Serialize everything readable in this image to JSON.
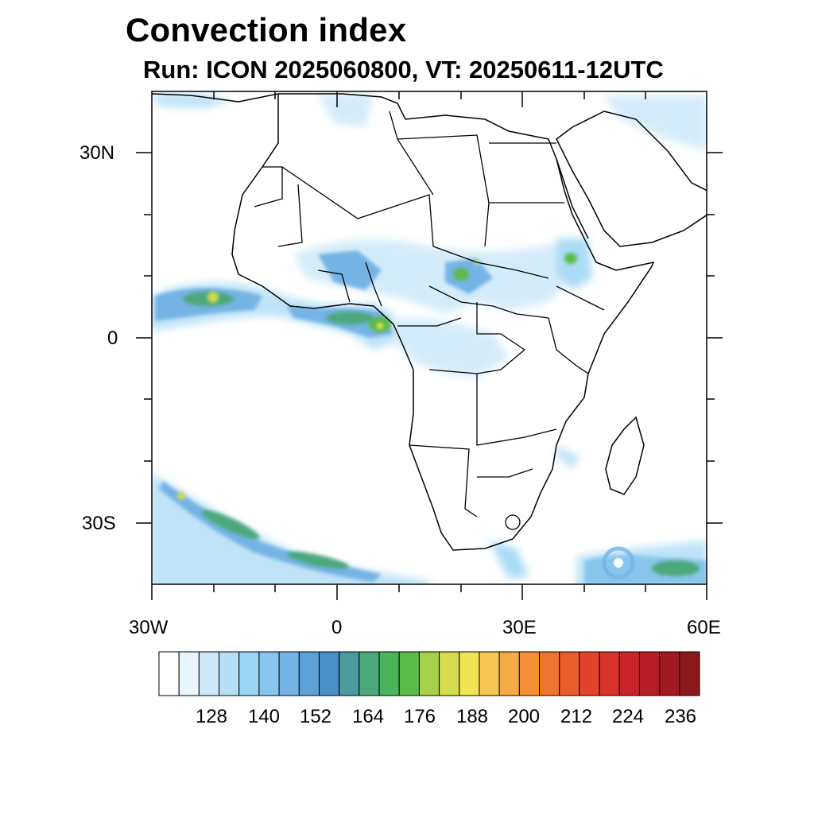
{
  "title": "Convection index",
  "subtitle": "Run: ICON 2025060800,  VT: 20250611-12UTC",
  "axes": {
    "lat_labels": [
      "30N",
      "0",
      "30S"
    ],
    "lon_labels": [
      "30W",
      "0",
      "30E",
      "60E"
    ],
    "lon_range": [
      -30,
      60
    ],
    "lat_range": [
      -40,
      40
    ]
  },
  "colorbar": {
    "labels": [
      "128",
      "140",
      "152",
      "164",
      "176",
      "188",
      "200",
      "212",
      "224",
      "236"
    ],
    "colors": [
      "#ffffff",
      "#e9f5fc",
      "#cde9f8",
      "#b4dff6",
      "#9dd5f5",
      "#88c6ee",
      "#74b3e5",
      "#5d9fd7",
      "#4a8fc6",
      "#4b9aa0",
      "#4ba87a",
      "#4bb45a",
      "#5bbb48",
      "#a8cf4a",
      "#d4dc4e",
      "#f0e453",
      "#f7c851",
      "#f5ab44",
      "#f28f37",
      "#ee7430",
      "#e95c2c",
      "#e2432a",
      "#d83229",
      "#c92428",
      "#b51e25",
      "#a01b21",
      "#8b1a1c"
    ]
  },
  "chart_data": {
    "type": "heatmap",
    "title": "Convection index",
    "subtitle": "Run: ICON 2025060800,  VT: 20250611-12UTC",
    "x_ticks": [
      "30W",
      "0",
      "30E",
      "60E"
    ],
    "y_ticks": [
      "30N",
      "0",
      "30S"
    ],
    "colorbar_ticks": [
      128,
      140,
      152,
      164,
      176,
      188,
      200,
      212,
      224,
      236
    ]
  }
}
